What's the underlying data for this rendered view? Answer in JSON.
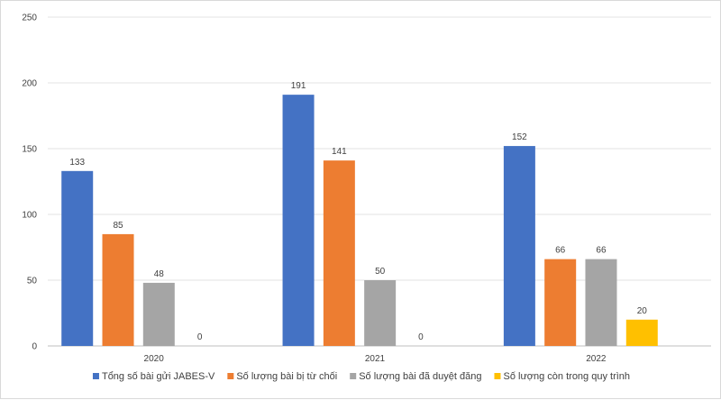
{
  "chart_data": {
    "type": "bar",
    "categories": [
      "2020",
      "2021",
      "2022"
    ],
    "series": [
      {
        "name": "Tổng số bài gửi JABES-V",
        "values": [
          133,
          191,
          152
        ],
        "color": "#4472C4"
      },
      {
        "name": "Số lượng bài bị từ chối",
        "values": [
          85,
          141,
          66
        ],
        "color": "#ED7D31"
      },
      {
        "name": "Số lượng bài đã duyệt đăng",
        "values": [
          48,
          50,
          66
        ],
        "color": "#A5A5A5"
      },
      {
        "name": "Số lượng còn trong quy trình",
        "values": [
          0,
          0,
          20
        ],
        "color": "#FFC000"
      }
    ],
    "ylim": [
      0,
      250
    ],
    "yticks": [
      0,
      50,
      100,
      150,
      200,
      250
    ],
    "grid": true,
    "legend": "bottom",
    "data_labels": true
  }
}
